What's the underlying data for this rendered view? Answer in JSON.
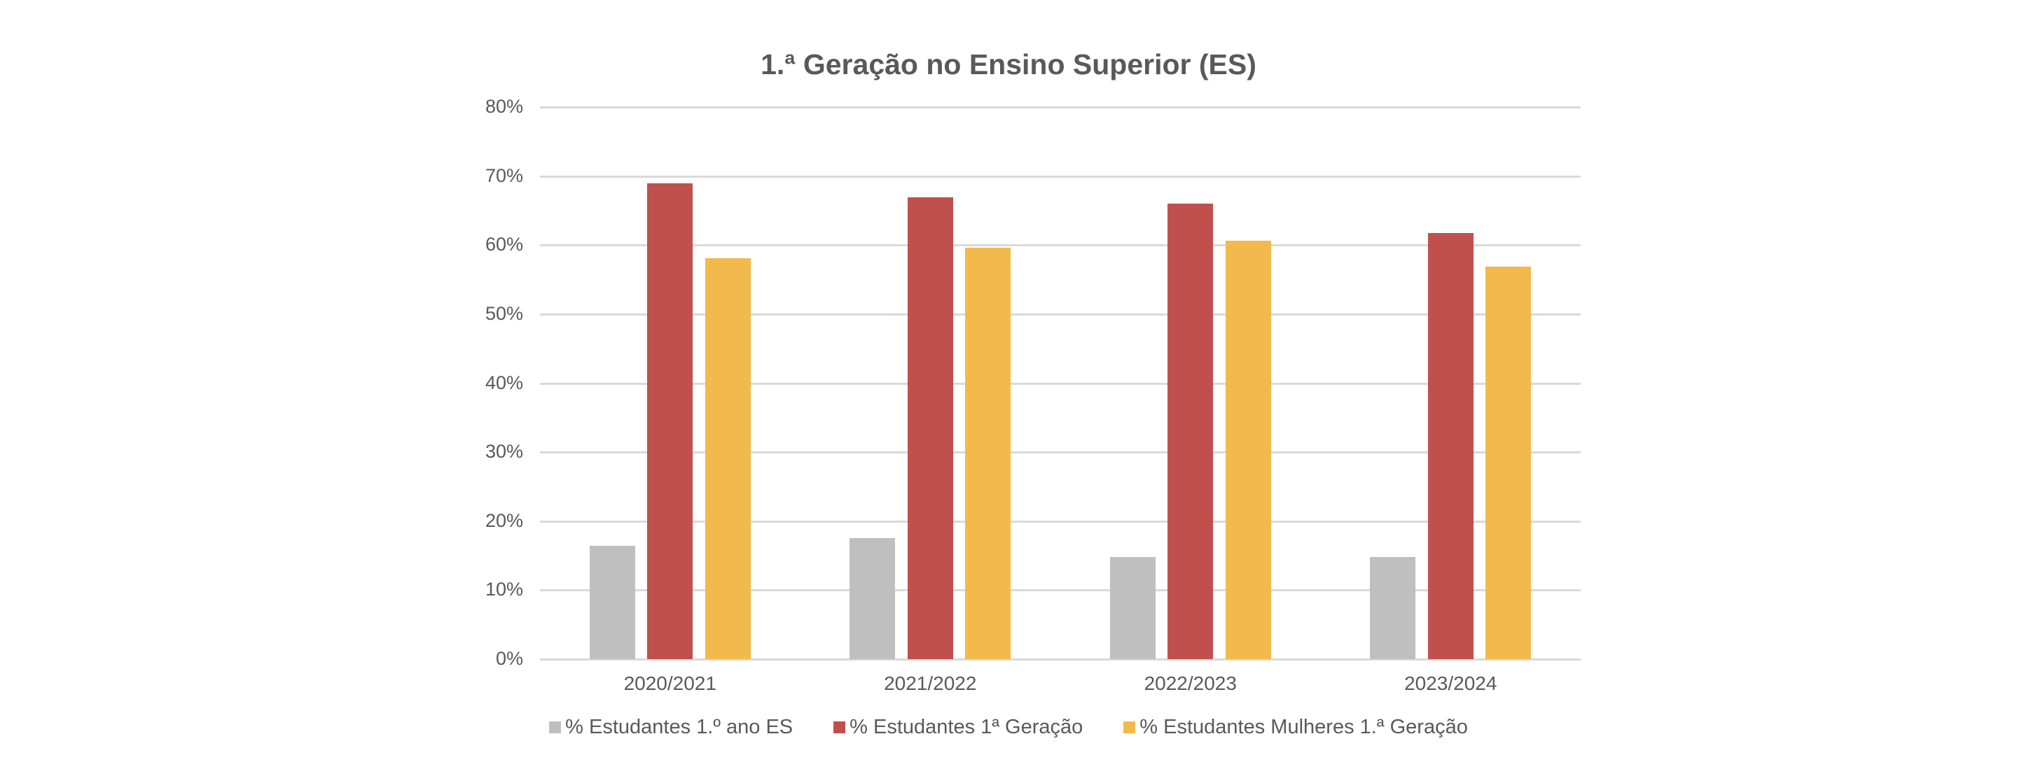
{
  "chart_data": {
    "type": "bar",
    "title": "1.ª Geração no Ensino Superior (ES)",
    "xlabel": "",
    "ylabel": "",
    "ylim": [
      0,
      80
    ],
    "yticks": [
      "0%",
      "10%",
      "20%",
      "30%",
      "40%",
      "50%",
      "60%",
      "70%",
      "80%"
    ],
    "grid": true,
    "legend_position": "bottom",
    "categories": [
      "2020/2021",
      "2021/2022",
      "2022/2023",
      "2023/2024"
    ],
    "series": [
      {
        "name": "% Estudantes 1.º ano ES",
        "color": "#BFBFBF",
        "values": [
          16.4,
          17.5,
          14.8,
          14.8
        ]
      },
      {
        "name": "% Estudantes 1ª Geração",
        "color": "#C0504D",
        "values": [
          68.9,
          66.9,
          66.0,
          61.7
        ]
      },
      {
        "name": "% Estudantes Mulheres 1.ª Geração",
        "color": "#F2BA4C",
        "values": [
          58.1,
          59.6,
          60.6,
          56.9
        ]
      }
    ]
  },
  "colors": {
    "text": "#595959",
    "grid": "#D9D9D9",
    "background": "#FFFFFF"
  }
}
